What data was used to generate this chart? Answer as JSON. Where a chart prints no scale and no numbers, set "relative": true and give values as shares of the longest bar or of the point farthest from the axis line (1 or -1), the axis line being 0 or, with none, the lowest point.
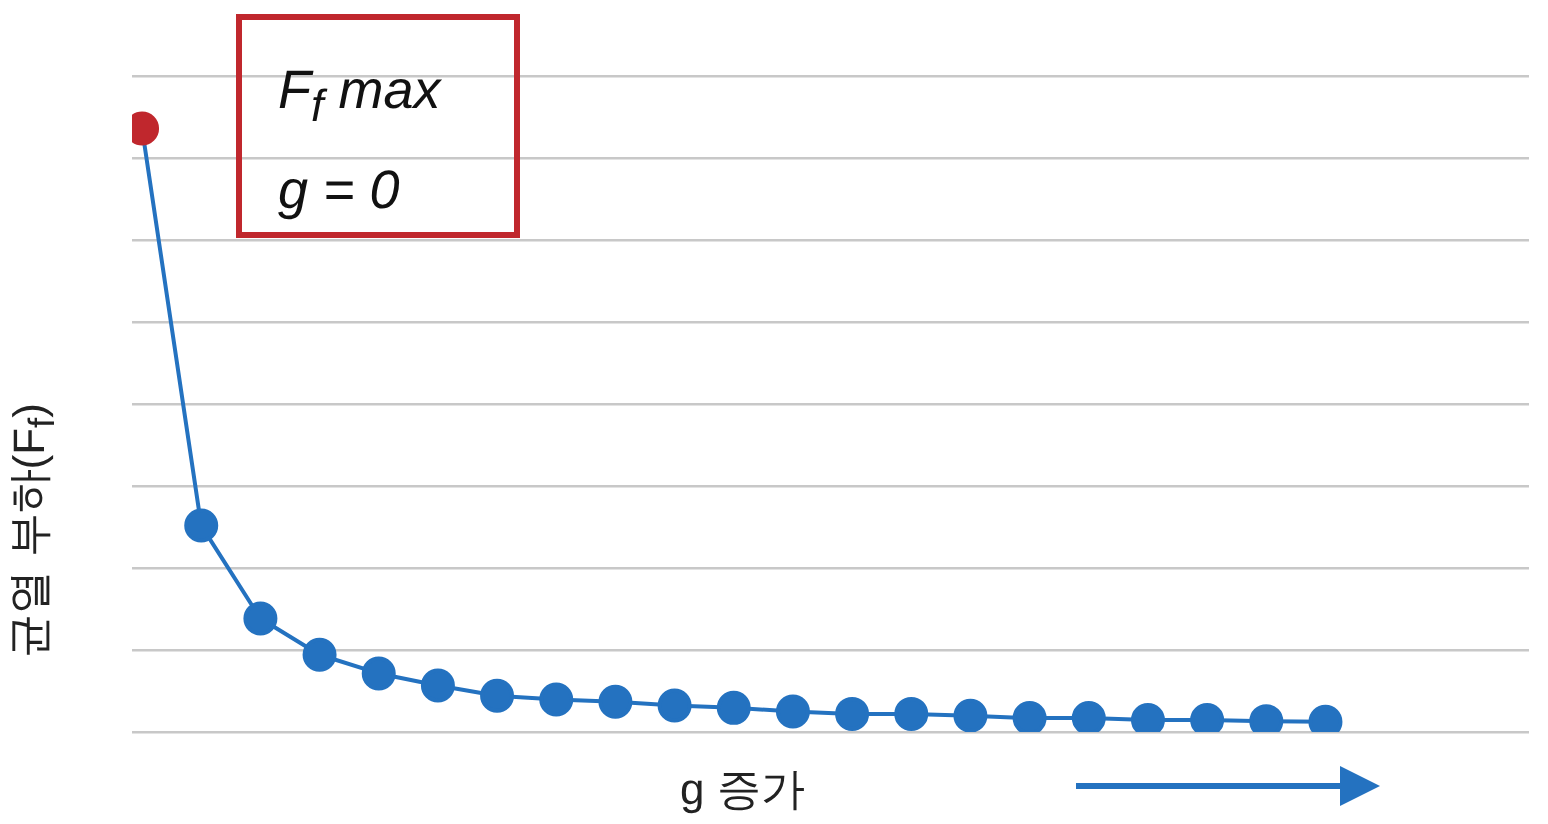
{
  "chart_data": {
    "type": "line",
    "relative": true,
    "xlabel": "g 증가",
    "ylabel": "균열 부하(F$_{f}$)",
    "annotations": [
      "F$_{f}$ max\ng = 0"
    ],
    "categories": [
      null,
      null,
      null,
      null,
      null,
      null,
      null,
      null,
      null,
      null,
      null,
      null,
      null,
      null,
      null,
      null,
      null,
      null,
      null,
      null,
      null
    ],
    "series": [
      {
        "color": "#2472c0",
        "colors": [
          "#c0272d",
          "#2472c0",
          "#2472c0",
          "#2472c0",
          "#2472c0",
          "#2472c0",
          "#2472c0",
          "#2472c0",
          "#2472c0",
          "#2472c0",
          "#2472c0",
          "#2472c0",
          "#2472c0",
          "#2472c0",
          "#2472c0",
          "#2472c0",
          "#2472c0",
          "#2472c0",
          "#2472c0",
          "#2472c0",
          "#2472c0"
        ],
        "values": [
          1,
          0.342,
          0.188,
          0.128,
          0.097,
          0.077,
          0.06,
          0.054,
          0.05,
          0.044,
          0.04,
          0.034,
          0.03,
          0.03,
          0.027,
          0.023,
          0.023,
          0.02,
          0.02,
          0.018,
          0.017
        ]
      }
    ],
    "grid": "y",
    "legend": false,
    "tick_labels": false,
    "marker": "circle",
    "line_style": "solid"
  }
}
